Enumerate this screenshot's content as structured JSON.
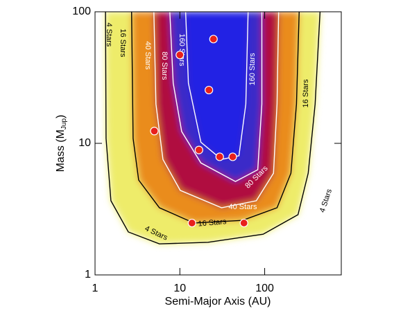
{
  "chart_data": {
    "type": "scatter",
    "xlabel": "Semi-Major Axis (AU)",
    "ylabel": {
      "text": "Mass (M",
      "sub": "Jup",
      "end": ")"
    },
    "log_x": true,
    "log_y": true,
    "xlim": [
      1,
      800
    ],
    "ylim": [
      1,
      100
    ],
    "xticks": [
      1,
      10,
      100
    ],
    "yticks": [
      1,
      10,
      100
    ],
    "points": {
      "color": "#e8201c",
      "x": [
        24.9,
        10,
        22,
        5.0,
        16.8,
        29.5,
        42,
        13.9,
        57
      ],
      "y": [
        62,
        47,
        25.4,
        12.4,
        8.9,
        7.9,
        7.9,
        2.48,
        2.48
      ]
    },
    "contours": [
      {
        "label": "4 Stars",
        "line_color": "#000000",
        "fill": "#eeec6a",
        "x": [
          1.33,
          1.35,
          1.54,
          2.47,
          5.74,
          21.4,
          96,
          247,
          326,
          393,
          450
        ],
        "y": [
          100,
          10.9,
          3.66,
          2.12,
          1.72,
          1.77,
          2.04,
          2.87,
          5.93,
          19.9,
          100
        ]
      },
      {
        "label": "16 Stars",
        "line_color": "#000000",
        "fill": "#ea8c1c",
        "x": [
          2.7,
          2.81,
          3.27,
          5.74,
          14.7,
          55,
          140,
          204,
          237,
          255
        ],
        "y": [
          100,
          10.9,
          5.26,
          3.24,
          2.48,
          2.6,
          3.24,
          5.93,
          19.9,
          100
        ]
      },
      {
        "label": "40 Stars",
        "line_color": "#ffffff",
        "fill": "#b01040",
        "x": [
          4.94,
          5.22,
          6.32,
          10.1,
          31,
          79.7,
          127,
          140,
          146
        ],
        "y": [
          100,
          19.9,
          7.55,
          4.39,
          3.24,
          3.66,
          5.93,
          19.9,
          100
        ]
      },
      {
        "label": "80 Stars",
        "line_color": "#ffffff",
        "fill": "#3a2ac8",
        "x": [
          7.62,
          8.35,
          10.5,
          17.7,
          45.2,
          82.9,
          92.7,
          92.7
        ],
        "y": [
          100,
          28.7,
          12.3,
          7.1,
          5.13,
          6.3,
          19.9,
          100
        ]
      },
      {
        "label": "160 Stars",
        "line_color": "#ffffff",
        "fill": "#2222e4",
        "x": [
          11.7,
          12.6,
          17.7,
          31,
          49.8,
          60,
          63.8
        ],
        "y": [
          100,
          28.7,
          10.2,
          7.55,
          8.05,
          19.9,
          100
        ]
      }
    ]
  }
}
